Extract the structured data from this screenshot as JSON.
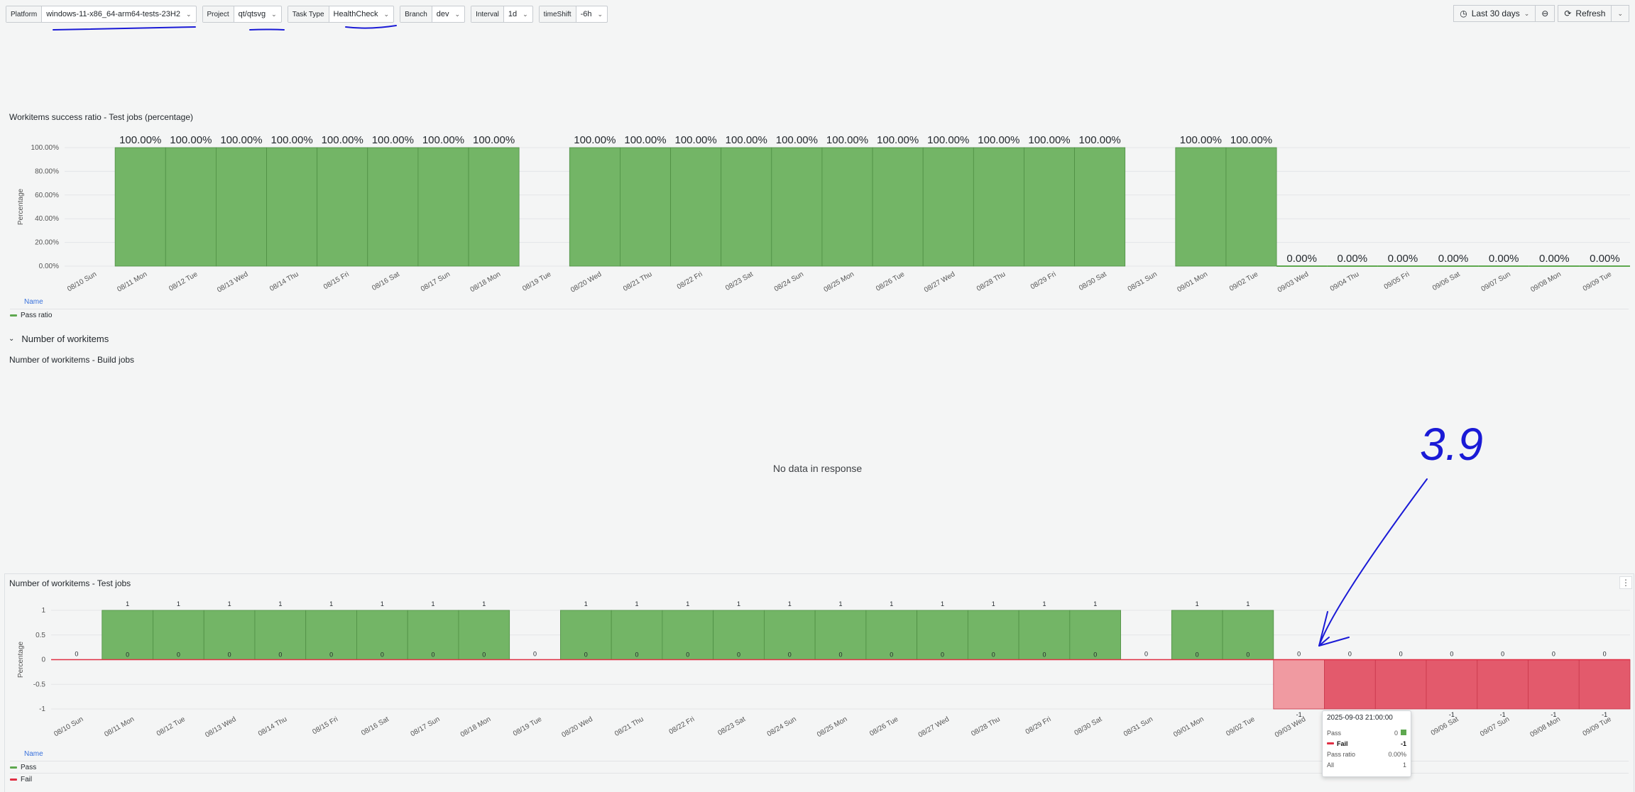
{
  "variables": [
    {
      "label": "Platform",
      "value": "windows-11-x86_64-arm64-tests-23H2"
    },
    {
      "label": "Project",
      "value": "qt/qtsvg"
    },
    {
      "label": "Task Type",
      "value": "HealthCheck"
    },
    {
      "label": "Branch",
      "value": "dev"
    },
    {
      "label": "Interval",
      "value": "1d"
    },
    {
      "label": "timeShift",
      "value": "-6h"
    }
  ],
  "time_range": "Last 30 days",
  "refresh_label": "Refresh",
  "panels": {
    "success_ratio": {
      "title": "Workitems success ratio - Test jobs (percentage)",
      "legend_header": "Name",
      "legend": [
        {
          "name": "Pass ratio",
          "color": "#5ea84f"
        }
      ]
    },
    "section_title": "Number of workitems",
    "build_jobs": {
      "title": "Number of workitems - Build jobs",
      "no_data": "No data in response"
    },
    "test_jobs": {
      "title": "Number of workitems - Test jobs",
      "legend_header": "Name",
      "legend": [
        {
          "name": "Pass",
          "color": "#5ea84f"
        },
        {
          "name": "Fail",
          "color": "#e02f44"
        }
      ]
    }
  },
  "tooltip": {
    "title": "2025-09-03 21:00:00",
    "rows": [
      {
        "label": "Pass",
        "value": "0"
      },
      {
        "label": "Fail",
        "value": "-1"
      },
      {
        "label": "Pass ratio",
        "value": "0.00%"
      },
      {
        "label": "All",
        "value": "1"
      }
    ]
  },
  "annotation_text": "3.9",
  "chart_data": [
    {
      "type": "bar",
      "title": "Workitems success ratio - Test jobs (percentage)",
      "ylabel": "Percentage",
      "ylim": [
        0,
        100
      ],
      "yticks": [
        "0.00%",
        "20.00%",
        "40.00%",
        "60.00%",
        "80.00%",
        "100.00%"
      ],
      "categories": [
        "08/10 Sun",
        "08/11 Mon",
        "08/12 Tue",
        "08/13 Wed",
        "08/14 Thu",
        "08/15 Fri",
        "08/16 Sat",
        "08/17 Sun",
        "08/18 Mon",
        "08/19 Tue",
        "08/20 Wed",
        "08/21 Thu",
        "08/22 Fri",
        "08/23 Sat",
        "08/24 Sun",
        "08/25 Mon",
        "08/26 Tue",
        "08/27 Wed",
        "08/28 Thu",
        "08/29 Fri",
        "08/30 Sat",
        "08/31 Sun",
        "09/01 Mon",
        "09/02 Tue",
        "09/03 Wed",
        "09/04 Thu",
        "09/05 Fri",
        "09/06 Sat",
        "09/07 Sun",
        "09/08 Mon",
        "09/09 Tue"
      ],
      "series": [
        {
          "name": "Pass ratio",
          "values": [
            null,
            100,
            100,
            100,
            100,
            100,
            100,
            100,
            100,
            null,
            100,
            100,
            100,
            100,
            100,
            100,
            100,
            100,
            100,
            100,
            100,
            null,
            100,
            100,
            0,
            0,
            0,
            0,
            0,
            0,
            0
          ]
        }
      ],
      "value_labels": [
        "",
        "100.00%",
        "100.00%",
        "100.00%",
        "100.00%",
        "100.00%",
        "100.00%",
        "100.00%",
        "100.00%",
        "",
        "100.00%",
        "100.00%",
        "100.00%",
        "100.00%",
        "100.00%",
        "100.00%",
        "100.00%",
        "100.00%",
        "100.00%",
        "100.00%",
        "100.00%",
        "",
        "100.00%",
        "100.00%",
        "0.00%",
        "0.00%",
        "0.00%",
        "0.00%",
        "0.00%",
        "0.00%",
        "0.00%"
      ]
    },
    {
      "type": "bar",
      "title": "Number of workitems - Test jobs",
      "ylabel": "Percentage",
      "ylim": [
        -1,
        1
      ],
      "yticks": [
        "-1",
        "-0.5",
        "0",
        "0.5",
        "1"
      ],
      "categories": [
        "08/10 Sun",
        "08/11 Mon",
        "08/12 Tue",
        "08/13 Wed",
        "08/14 Thu",
        "08/15 Fri",
        "08/16 Sat",
        "08/17 Sun",
        "08/18 Mon",
        "08/19 Tue",
        "08/20 Wed",
        "08/21 Thu",
        "08/22 Fri",
        "08/23 Sat",
        "08/24 Sun",
        "08/25 Mon",
        "08/26 Tue",
        "08/27 Wed",
        "08/28 Thu",
        "08/29 Fri",
        "08/30 Sat",
        "08/31 Sun",
        "09/01 Mon",
        "09/02 Tue",
        "09/03 Wed",
        "09/04 Thu",
        "09/05 Fri",
        "09/06 Sat",
        "09/07 Sun",
        "09/08 Mon",
        "09/09 Tue"
      ],
      "series": [
        {
          "name": "Pass",
          "values": [
            0,
            1,
            1,
            1,
            1,
            1,
            1,
            1,
            1,
            0,
            1,
            1,
            1,
            1,
            1,
            1,
            1,
            1,
            1,
            1,
            1,
            0,
            1,
            1,
            0,
            0,
            0,
            0,
            0,
            0,
            0
          ]
        },
        {
          "name": "Fail",
          "values": [
            0,
            0,
            0,
            0,
            0,
            0,
            0,
            0,
            0,
            0,
            0,
            0,
            0,
            0,
            0,
            0,
            0,
            0,
            0,
            0,
            0,
            0,
            0,
            0,
            -1,
            -1,
            -1,
            -1,
            -1,
            -1,
            -1
          ]
        }
      ]
    }
  ]
}
